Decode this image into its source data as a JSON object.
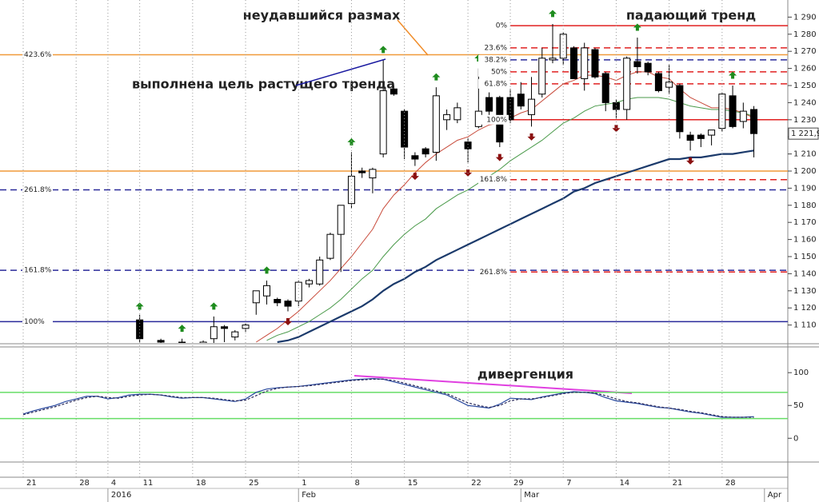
{
  "chart_data": [
    {
      "type": "candlestick",
      "categories": [
        "21",
        null,
        null,
        null,
        null,
        "28",
        null,
        null,
        "4",
        null,
        null,
        "11",
        null,
        null,
        null,
        null,
        "18",
        null,
        null,
        null,
        null,
        "25",
        null,
        null,
        null,
        null,
        "1",
        null,
        null,
        null,
        null,
        "8",
        null,
        null,
        null,
        null,
        "15",
        null,
        null,
        null,
        null,
        null,
        "22",
        null,
        null,
        null,
        "29",
        null,
        null,
        null,
        null,
        "7",
        null,
        null,
        null,
        null,
        "14",
        null,
        null,
        null,
        null,
        "21",
        null,
        null,
        null,
        null,
        "28",
        null,
        null,
        null,
        null
      ],
      "months": [
        null,
        null,
        null,
        null,
        null,
        null,
        null,
        null,
        "2016",
        null,
        null,
        null,
        null,
        null,
        null,
        null,
        null,
        null,
        null,
        null,
        null,
        null,
        null,
        null,
        null,
        null,
        "Feb",
        null,
        null,
        null,
        null,
        null,
        null,
        null,
        null,
        null,
        null,
        null,
        null,
        null,
        null,
        null,
        null,
        null,
        null,
        null,
        null,
        "Mar",
        null,
        null,
        null,
        null,
        null,
        null,
        null,
        null,
        null,
        null,
        null,
        null,
        null,
        null,
        null,
        null,
        null,
        null,
        null,
        null,
        null,
        null,
        "Apr"
      ],
      "open": [
        null,
        null,
        null,
        null,
        null,
        null,
        null,
        null,
        null,
        null,
        null,
        1113,
        1097,
        1101,
        1096,
        1100,
        1097,
        1098,
        1102,
        1109,
        1103,
        1108,
        1123,
        1127,
        1125,
        1124,
        1124,
        1134,
        1134,
        1149,
        1163,
        1181,
        1200,
        1196,
        1210,
        1248,
        1235,
        1209,
        1213,
        1211,
        1230,
        1230,
        1217,
        1226,
        1243,
        1243,
        1243,
        1245,
        1233,
        1245,
        1265,
        1266,
        1272,
        1254,
        1271,
        1257,
        1240,
        1236,
        1264,
        1263,
        1257,
        1249,
        1250,
        1221,
        1221,
        1221,
        1225,
        1244,
        1229,
        1236,
        null
      ],
      "high": [
        null,
        null,
        null,
        null,
        null,
        null,
        null,
        null,
        null,
        null,
        null,
        1116,
        1099,
        1102,
        1099,
        1102,
        1099,
        1101,
        1115,
        1110,
        1107,
        1111,
        1130,
        1136,
        1126,
        1125,
        1136,
        1137,
        1150,
        1164,
        1180,
        1211,
        1202,
        1202,
        1265,
        1250,
        1236,
        1211,
        1214,
        1249,
        1236,
        1240,
        1219,
        1260,
        1246,
        1244,
        1248,
        1252,
        1255,
        1272,
        1286,
        1281,
        1273,
        1275,
        1272,
        1258,
        1242,
        1267,
        1278,
        1264,
        1258,
        1262,
        1251,
        1223,
        1222,
        1224,
        1246,
        1250,
        1240,
        1238,
        null
      ],
      "low": [
        null,
        null,
        null,
        null,
        null,
        null,
        null,
        null,
        null,
        null,
        null,
        1100,
        1093,
        1098,
        1092,
        1096,
        1094,
        1095,
        1099,
        1100,
        1101,
        1106,
        1116,
        1122,
        1121,
        1118,
        1121,
        1132,
        1133,
        1148,
        1141,
        1178,
        1196,
        1187,
        1208,
        1244,
        1207,
        1203,
        1208,
        1206,
        1224,
        1228,
        1205,
        1225,
        1230,
        1214,
        1228,
        1236,
        1226,
        1243,
        1263,
        1262,
        1254,
        1247,
        1254,
        1235,
        1231,
        1230,
        1257,
        1256,
        1246,
        1245,
        1219,
        1212,
        1214,
        1215,
        1223,
        1225,
        1225,
        1208,
        null
      ],
      "close": [
        null,
        null,
        null,
        null,
        null,
        null,
        null,
        null,
        null,
        null,
        null,
        1102,
        1095,
        1100,
        1097,
        1099,
        1098,
        1100,
        1109,
        1108,
        1106,
        1110,
        1130,
        1133,
        1123,
        1121,
        1135,
        1136,
        1148,
        1163,
        1180,
        1197,
        1199,
        1201,
        1247,
        1245,
        1214,
        1207,
        1210,
        1244,
        1233,
        1237,
        1213,
        1235,
        1235,
        1217,
        1230,
        1238,
        1242,
        1266,
        1266,
        1280,
        1254,
        1272,
        1255,
        1240,
        1236,
        1266,
        1261,
        1258,
        1247,
        1252,
        1223,
        1218,
        1219,
        1224,
        1245,
        1226,
        1235,
        1221.9,
        null
      ],
      "close_label": "1 221,9",
      "up_color": "#ffffff",
      "down_color": "#000000",
      "signals_up": [
        null,
        null,
        null,
        null,
        null,
        null,
        null,
        null,
        null,
        null,
        null,
        1119,
        null,
        null,
        null,
        1106,
        null,
        null,
        1119,
        null,
        null,
        null,
        null,
        1140,
        null,
        null,
        null,
        null,
        null,
        null,
        null,
        1215,
        null,
        null,
        1269,
        null,
        null,
        null,
        null,
        1253,
        null,
        null,
        null,
        1264,
        null,
        null,
        null,
        null,
        null,
        null,
        1290,
        null,
        null,
        null,
        null,
        null,
        null,
        null,
        1282,
        null,
        null,
        null,
        null,
        null,
        null,
        null,
        null,
        1254,
        null,
        null,
        null
      ],
      "signals_up_color": "#1e8c1e",
      "signals_down": [
        null,
        null,
        null,
        null,
        null,
        null,
        null,
        null,
        null,
        null,
        null,
        null,
        null,
        null,
        null,
        null,
        null,
        null,
        null,
        null,
        null,
        null,
        null,
        null,
        null,
        1114,
        null,
        null,
        null,
        null,
        null,
        null,
        null,
        null,
        null,
        null,
        null,
        1199,
        null,
        null,
        null,
        null,
        1201,
        null,
        null,
        1210,
        null,
        null,
        1222,
        null,
        null,
        null,
        null,
        null,
        null,
        null,
        1227,
        null,
        null,
        null,
        null,
        null,
        null,
        1208,
        null,
        null,
        null,
        null,
        null,
        null,
        null
      ],
      "signals_down_color": "#8b1010",
      "lines": [
        {
          "color": "#c84a3a",
          "width": 1,
          "values": [
            null,
            null,
            null,
            null,
            null,
            null,
            null,
            null,
            null,
            null,
            null,
            null,
            null,
            null,
            null,
            null,
            null,
            null,
            null,
            null,
            null,
            null,
            1100,
            1104,
            1108,
            1113,
            1118,
            1124,
            1130,
            1136,
            1143,
            1150,
            1158,
            1166,
            1178,
            1186,
            1192,
            1199,
            1205,
            1210,
            1214,
            1218,
            1220,
            1224,
            1227,
            1228,
            1231,
            1234,
            1236,
            1241,
            1246,
            1251,
            1253,
            1256,
            1256,
            1255,
            1253,
            1256,
            1258,
            1258,
            1255,
            1254,
            1248,
            1243,
            1240,
            1237,
            1237,
            1236,
            1234,
            1231,
            null
          ]
        },
        {
          "color": "#4a9a4a",
          "width": 1,
          "values": [
            null,
            null,
            null,
            null,
            null,
            null,
            null,
            null,
            null,
            null,
            null,
            null,
            null,
            null,
            null,
            null,
            null,
            null,
            null,
            null,
            null,
            null,
            null,
            1101,
            1104,
            1106,
            1109,
            1112,
            1116,
            1120,
            1125,
            1131,
            1137,
            1142,
            1150,
            1157,
            1163,
            1168,
            1172,
            1178,
            1182,
            1186,
            1189,
            1193,
            1197,
            1201,
            1206,
            1210,
            1214,
            1218,
            1223,
            1228,
            1231,
            1235,
            1238,
            1239,
            1240,
            1242,
            1243,
            1243,
            1243,
            1242,
            1240,
            1238,
            1237,
            1236,
            1236,
            1235,
            1234,
            1232,
            null
          ]
        },
        {
          "color": "#1b3a6b",
          "width": 2.2,
          "values": [
            null,
            null,
            null,
            null,
            null,
            null,
            null,
            null,
            null,
            null,
            null,
            null,
            null,
            null,
            null,
            null,
            null,
            null,
            null,
            null,
            null,
            null,
            null,
            null,
            1100,
            1101,
            1103,
            1106,
            1109,
            1112,
            1115,
            1118,
            1121,
            1125,
            1130,
            1134,
            1137,
            1141,
            1144,
            1148,
            1151,
            1154,
            1157,
            1160,
            1163,
            1166,
            1169,
            1172,
            1175,
            1178,
            1181,
            1184,
            1188,
            1190,
            1193,
            1195,
            1197,
            1199,
            1201,
            1203,
            1205,
            1207,
            1207,
            1208,
            1208,
            1209,
            1210,
            1210,
            1211,
            1212,
            null
          ]
        }
      ],
      "ylim": [
        1100,
        1300
      ],
      "yticks": [
        {
          "value": 1110,
          "label": "1 110"
        },
        {
          "value": 1120,
          "label": "1 120"
        },
        {
          "value": 1130,
          "label": "1 130"
        },
        {
          "value": 1140,
          "label": "1 140"
        },
        {
          "value": 1150,
          "label": "1 150"
        },
        {
          "value": 1160,
          "label": "1 160"
        },
        {
          "value": 1170,
          "label": "1 170"
        },
        {
          "value": 1180,
          "label": "1 180"
        },
        {
          "value": 1190,
          "label": "1 190"
        },
        {
          "value": 1200,
          "label": "1 200"
        },
        {
          "value": 1210,
          "label": "1 210"
        },
        {
          "value": 1220,
          "label": "1 220"
        },
        {
          "value": 1230,
          "label": "1 230"
        },
        {
          "value": 1240,
          "label": "1 240"
        },
        {
          "value": 1250,
          "label": "1 250"
        },
        {
          "value": 1260,
          "label": "1 260"
        },
        {
          "value": 1270,
          "label": "1 270"
        },
        {
          "value": 1280,
          "label": "1 280"
        },
        {
          "value": 1290,
          "label": "1 290"
        }
      ],
      "levels": [
        {
          "value": 1268,
          "label": "423.6%",
          "color": "#f09a3a",
          "dash": false
        },
        {
          "value": 1200,
          "color": "#f09a3a",
          "dash": false
        },
        {
          "value": 1189,
          "label": "261.8%",
          "color": "#2a2a9a",
          "dash": true
        },
        {
          "value": 1142,
          "label": "161.8%",
          "color": "#2a2a9a",
          "dash": true
        },
        {
          "value": 1112,
          "label": "100%",
          "color": "#2a2a9a",
          "dash": false
        }
      ],
      "fib_levels": [
        {
          "value": 1285,
          "label": "0%",
          "color": "#e02020",
          "dash": false
        },
        {
          "value": 1272,
          "label": "23.6%",
          "color": "#e02020",
          "dash": true
        },
        {
          "value": 1265,
          "label": "38.2%",
          "color": "#2a2a9a",
          "dash": true
        },
        {
          "value": 1258,
          "label": "50%",
          "color": "#e02020",
          "dash": true
        },
        {
          "value": 1251,
          "label": "61.8%",
          "color": "#e02020",
          "dash": true
        },
        {
          "value": 1230,
          "label": "100%",
          "color": "#e02020",
          "dash": false
        },
        {
          "value": 1195,
          "label": "161.8%",
          "color": "#e02020",
          "dash": true
        },
        {
          "value": 1141,
          "label": "261.8%",
          "color": "#e02020",
          "dash": true
        }
      ],
      "annotations": [
        {
          "text": "неудавшийся размах",
          "color": "#f08c28"
        },
        {
          "text": "выполнена цель растущего тренда",
          "color": "#1a1aa0"
        },
        {
          "text": "падающий тренд",
          "color": "#e02020"
        }
      ]
    },
    {
      "type": "line",
      "series": [
        {
          "color": "#2a4aa0",
          "dash": false,
          "values": [
            37,
            42,
            46,
            50,
            56,
            60,
            64,
            64,
            60,
            62,
            66,
            67,
            67,
            66,
            63,
            61,
            62,
            62,
            60,
            58,
            56,
            60,
            70,
            75,
            77,
            78,
            79,
            81,
            83,
            85,
            87,
            89,
            90,
            91,
            90,
            86,
            82,
            78,
            74,
            70,
            66,
            58,
            50,
            48,
            46,
            52,
            61,
            60,
            59,
            63,
            66,
            69,
            71,
            70,
            68,
            62,
            57,
            55,
            53,
            50,
            47,
            46,
            43,
            40,
            38,
            35,
            32,
            32,
            32,
            33,
            null
          ]
        },
        {
          "color": "#2a2a5a",
          "dash": true,
          "values": [
            36,
            40,
            44,
            48,
            53,
            58,
            62,
            64,
            62,
            61,
            64,
            66,
            67,
            66,
            64,
            62,
            62,
            62,
            61,
            59,
            57,
            58,
            65,
            72,
            76,
            78,
            79,
            80,
            82,
            84,
            86,
            88,
            89,
            90,
            90,
            88,
            84,
            80,
            76,
            72,
            68,
            61,
            54,
            50,
            47,
            50,
            57,
            60,
            60,
            62,
            65,
            68,
            70,
            70,
            69,
            65,
            60,
            56,
            54,
            51,
            48,
            46,
            44,
            41,
            39,
            36,
            33,
            32,
            32,
            32,
            null
          ]
        }
      ],
      "ylim": [
        -35,
        138
      ],
      "yticks": [
        0,
        50,
        100
      ],
      "levels": [
        {
          "value": 70,
          "color": "#66dd66"
        },
        {
          "value": 30,
          "color": "#66dd66"
        }
      ],
      "annotations": [
        {
          "text": "дивергенция",
          "color": "#e040e0"
        }
      ]
    }
  ]
}
